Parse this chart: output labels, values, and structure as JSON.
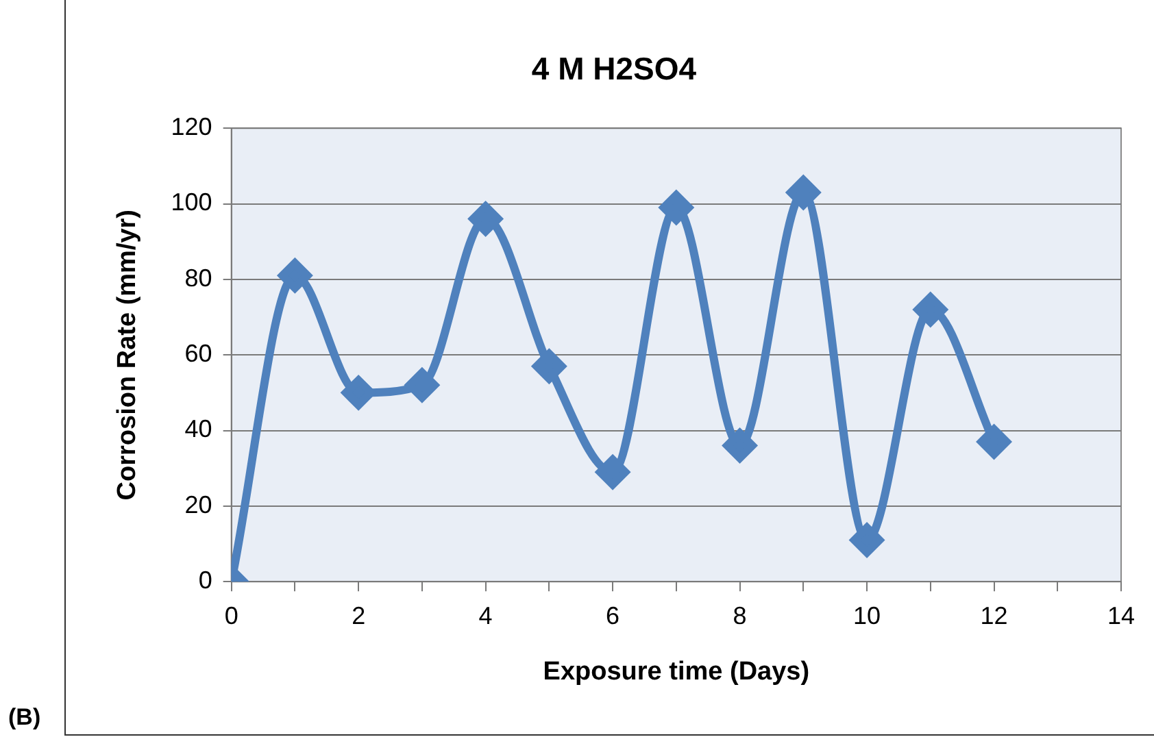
{
  "chart_data": {
    "type": "line",
    "title": "4 M H2SO4",
    "xlabel": "Exposure time (Days)",
    "ylabel": "Corrosion Rate (mm/yr)",
    "annotations": [
      "(B)"
    ],
    "x": [
      0,
      1,
      2,
      3,
      4,
      5,
      6,
      7,
      8,
      9,
      10,
      11,
      12
    ],
    "series": [
      {
        "color": "#4f81bd",
        "values": [
          0,
          81,
          50,
          52,
          96,
          57,
          29,
          99,
          36,
          103,
          11,
          72,
          37
        ]
      }
    ],
    "xlim": [
      0,
      14
    ],
    "xticks": [
      0,
      {
        "value": 1,
        "label": null
      },
      2,
      {
        "value": 3,
        "label": null
      },
      4,
      {
        "value": 5,
        "label": null
      },
      6,
      {
        "value": 7,
        "label": null
      },
      8,
      {
        "value": 9,
        "label": null
      },
      10,
      {
        "value": 11,
        "label": null
      },
      12,
      {
        "value": 13,
        "label": null
      },
      14
    ],
    "ylim": [
      0,
      120
    ],
    "yticks": [
      0,
      20,
      40,
      60,
      80,
      100,
      120
    ],
    "grid": "y",
    "legend": false,
    "marker": "diamond",
    "line_style": "solid"
  }
}
